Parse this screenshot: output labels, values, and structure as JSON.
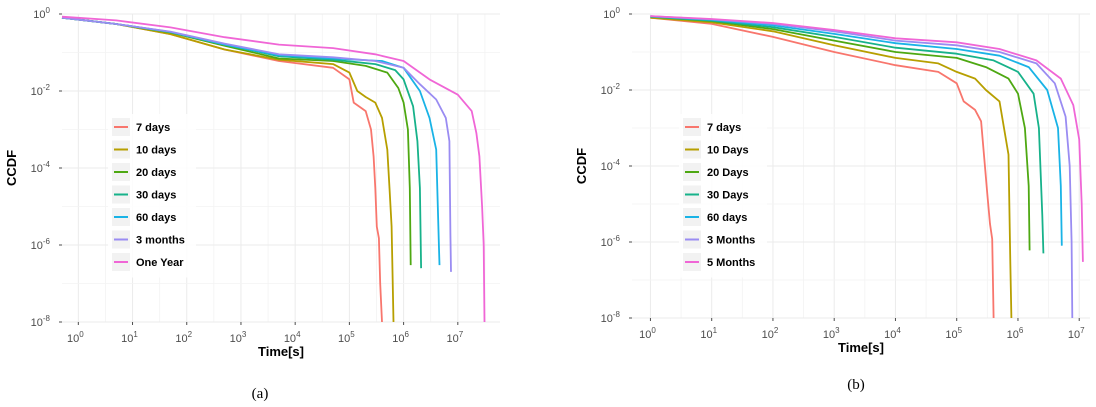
{
  "chart_data": [
    {
      "type": "line",
      "panel_label": "(a)",
      "xlabel": "Time[s]",
      "ylabel": "CCDF",
      "x_scale": "log10",
      "y_scale": "log10",
      "xlim": [
        0.5,
        60000000
      ],
      "ylim": [
        1e-08,
        1
      ],
      "x_ticks": [
        {
          "value": 1,
          "base": "10",
          "exp": "0"
        },
        {
          "value": 10,
          "base": "10",
          "exp": "1"
        },
        {
          "value": 100,
          "base": "10",
          "exp": "2"
        },
        {
          "value": 1000,
          "base": "10",
          "exp": "3"
        },
        {
          "value": 10000,
          "base": "10",
          "exp": "4"
        },
        {
          "value": 100000,
          "base": "10",
          "exp": "5"
        },
        {
          "value": 1000000,
          "base": "10",
          "exp": "6"
        },
        {
          "value": 10000000,
          "base": "10",
          "exp": "7"
        }
      ],
      "y_ticks": [
        {
          "value": 1,
          "base": "10",
          "exp": "0"
        },
        {
          "value": 0.01,
          "base": "10",
          "exp": "-2"
        },
        {
          "value": 0.0001,
          "base": "10",
          "exp": "-4"
        },
        {
          "value": 1e-06,
          "base": "10",
          "exp": "-6"
        },
        {
          "value": 1e-08,
          "base": "10",
          "exp": "-8"
        }
      ],
      "grid": true,
      "legend_position": "left",
      "series": [
        {
          "name": "7 days",
          "color": "#F8766D",
          "points": [
            [
              0.5,
              0.8
            ],
            [
              5,
              0.55
            ],
            [
              50,
              0.3
            ],
            [
              500,
              0.12
            ],
            [
              5000,
              0.06
            ],
            [
              50000,
              0.04
            ],
            [
              100000,
              0.02
            ],
            [
              120000,
              0.005
            ],
            [
              200000,
              0.003
            ],
            [
              250000,
              0.001
            ],
            [
              280000,
              0.0002
            ],
            [
              300000,
              3e-05
            ],
            [
              320000,
              3e-06
            ],
            [
              350000,
              1.5e-06
            ],
            [
              370000,
              1e-07
            ],
            [
              400000,
              1e-08
            ]
          ]
        },
        {
          "name": "10 days",
          "color": "#B79F00",
          "points": [
            [
              0.5,
              0.8
            ],
            [
              5,
              0.55
            ],
            [
              50,
              0.3
            ],
            [
              500,
              0.12
            ],
            [
              5000,
              0.065
            ],
            [
              50000,
              0.05
            ],
            [
              100000,
              0.03
            ],
            [
              140000,
              0.01
            ],
            [
              200000,
              0.007
            ],
            [
              300000,
              0.005
            ],
            [
              400000,
              0.002
            ],
            [
              500000,
              0.0003
            ],
            [
              550000,
              3e-05
            ],
            [
              600000,
              3e-06
            ],
            [
              650000,
              1e-08
            ]
          ]
        },
        {
          "name": "20 days",
          "color": "#4EA812",
          "points": [
            [
              0.5,
              0.8
            ],
            [
              5,
              0.55
            ],
            [
              50,
              0.33
            ],
            [
              500,
              0.15
            ],
            [
              5000,
              0.07
            ],
            [
              50000,
              0.06
            ],
            [
              200000,
              0.045
            ],
            [
              500000,
              0.03
            ],
            [
              800000,
              0.012
            ],
            [
              1000000,
              0.005
            ],
            [
              1200000,
              0.001
            ],
            [
              1300000,
              3e-05
            ],
            [
              1350000,
              3e-07
            ]
          ]
        },
        {
          "name": "30 days",
          "color": "#17B28A",
          "points": [
            [
              0.5,
              0.8
            ],
            [
              5,
              0.55
            ],
            [
              50,
              0.34
            ],
            [
              500,
              0.16
            ],
            [
              5000,
              0.08
            ],
            [
              50000,
              0.065
            ],
            [
              300000,
              0.05
            ],
            [
              700000,
              0.035
            ],
            [
              1000000,
              0.02
            ],
            [
              1500000,
              0.004
            ],
            [
              1800000,
              0.0005
            ],
            [
              2000000,
              3e-05
            ],
            [
              2100000,
              2.5e-07
            ]
          ]
        },
        {
          "name": "60 days",
          "color": "#19B3E6",
          "points": [
            [
              0.5,
              0.8
            ],
            [
              5,
              0.55
            ],
            [
              50,
              0.34
            ],
            [
              500,
              0.16
            ],
            [
              5000,
              0.085
            ],
            [
              50000,
              0.07
            ],
            [
              400000,
              0.06
            ],
            [
              1000000,
              0.04
            ],
            [
              2000000,
              0.01
            ],
            [
              3000000,
              0.002
            ],
            [
              4000000,
              0.0003
            ],
            [
              4500000,
              8e-07
            ],
            [
              4600000,
              3e-07
            ]
          ]
        },
        {
          "name": "3 months",
          "color": "#9A8CF2",
          "points": [
            [
              0.5,
              0.8
            ],
            [
              5,
              0.55
            ],
            [
              50,
              0.35
            ],
            [
              500,
              0.17
            ],
            [
              5000,
              0.09
            ],
            [
              50000,
              0.075
            ],
            [
              300000,
              0.06
            ],
            [
              1000000,
              0.04
            ],
            [
              2000000,
              0.015
            ],
            [
              4000000,
              0.006
            ],
            [
              6000000,
              0.002
            ],
            [
              7000000,
              0.0005
            ],
            [
              7300000,
              2e-06
            ],
            [
              7500000,
              2e-07
            ]
          ]
        },
        {
          "name": "One Year",
          "color": "#F066D6",
          "points": [
            [
              0.5,
              0.85
            ],
            [
              5,
              0.68
            ],
            [
              50,
              0.45
            ],
            [
              500,
              0.25
            ],
            [
              5000,
              0.16
            ],
            [
              50000,
              0.13
            ],
            [
              300000,
              0.09
            ],
            [
              1000000,
              0.06
            ],
            [
              3000000,
              0.02
            ],
            [
              10000000,
              0.008
            ],
            [
              18000000,
              0.003
            ],
            [
              22000000,
              0.0008
            ],
            [
              25000000,
              0.0002
            ],
            [
              28000000,
              1e-05
            ],
            [
              30000000,
              1e-06
            ],
            [
              31000000,
              1e-08
            ]
          ]
        }
      ]
    },
    {
      "type": "line",
      "panel_label": "(b)",
      "xlabel": "Time[s]",
      "ylabel": "CCDF",
      "x_scale": "log10",
      "y_scale": "log10",
      "xlim": [
        0.5,
        15000000
      ],
      "ylim": [
        1e-08,
        1
      ],
      "x_ticks": [
        {
          "value": 1,
          "base": "10",
          "exp": "0"
        },
        {
          "value": 10,
          "base": "10",
          "exp": "1"
        },
        {
          "value": 100,
          "base": "10",
          "exp": "2"
        },
        {
          "value": 1000,
          "base": "10",
          "exp": "3"
        },
        {
          "value": 10000,
          "base": "10",
          "exp": "4"
        },
        {
          "value": 100000,
          "base": "10",
          "exp": "5"
        },
        {
          "value": 1000000,
          "base": "10",
          "exp": "6"
        },
        {
          "value": 10000000,
          "base": "10",
          "exp": "7"
        }
      ],
      "y_ticks": [
        {
          "value": 1,
          "base": "10",
          "exp": "0"
        },
        {
          "value": 0.01,
          "base": "10",
          "exp": "-2"
        },
        {
          "value": 0.0001,
          "base": "10",
          "exp": "-4"
        },
        {
          "value": 1e-06,
          "base": "10",
          "exp": "-6"
        },
        {
          "value": 1e-08,
          "base": "10",
          "exp": "-8"
        }
      ],
      "grid": true,
      "legend_position": "left",
      "series": [
        {
          "name": "7 days",
          "color": "#F8766D",
          "points": [
            [
              1,
              0.8
            ],
            [
              10,
              0.55
            ],
            [
              100,
              0.25
            ],
            [
              1000,
              0.1
            ],
            [
              10000,
              0.045
            ],
            [
              50000,
              0.03
            ],
            [
              100000,
              0.015
            ],
            [
              130000,
              0.005
            ],
            [
              200000,
              0.003
            ],
            [
              250000,
              0.0015
            ],
            [
              300000,
              5e-05
            ],
            [
              320000,
              1.5e-05
            ],
            [
              350000,
              3e-06
            ],
            [
              380000,
              1.2e-06
            ],
            [
              400000,
              1e-08
            ]
          ]
        },
        {
          "name": "10 Days",
          "color": "#B79F00",
          "points": [
            [
              1,
              0.8
            ],
            [
              10,
              0.6
            ],
            [
              100,
              0.35
            ],
            [
              1000,
              0.15
            ],
            [
              10000,
              0.07
            ],
            [
              50000,
              0.05
            ],
            [
              100000,
              0.03
            ],
            [
              200000,
              0.02
            ],
            [
              300000,
              0.01
            ],
            [
              500000,
              0.005
            ],
            [
              700000,
              0.0002
            ],
            [
              750000,
              3e-07
            ],
            [
              780000,
              1e-08
            ]
          ]
        },
        {
          "name": "20 Days",
          "color": "#4EA812",
          "points": [
            [
              1,
              0.85
            ],
            [
              10,
              0.65
            ],
            [
              100,
              0.4
            ],
            [
              1000,
              0.2
            ],
            [
              10000,
              0.1
            ],
            [
              100000,
              0.07
            ],
            [
              300000,
              0.04
            ],
            [
              700000,
              0.02
            ],
            [
              1000000,
              0.008
            ],
            [
              1300000,
              0.001
            ],
            [
              1500000,
              3e-05
            ],
            [
              1550000,
              6e-07
            ]
          ]
        },
        {
          "name": "30 Days",
          "color": "#17B28A",
          "points": [
            [
              1,
              0.85
            ],
            [
              10,
              0.67
            ],
            [
              100,
              0.45
            ],
            [
              1000,
              0.25
            ],
            [
              10000,
              0.13
            ],
            [
              100000,
              0.09
            ],
            [
              400000,
              0.06
            ],
            [
              1000000,
              0.03
            ],
            [
              1800000,
              0.008
            ],
            [
              2200000,
              0.001
            ],
            [
              2500000,
              5e-06
            ],
            [
              2600000,
              5e-07
            ]
          ]
        },
        {
          "name": "60 days",
          "color": "#19B3E6",
          "points": [
            [
              1,
              0.87
            ],
            [
              10,
              0.7
            ],
            [
              100,
              0.5
            ],
            [
              1000,
              0.3
            ],
            [
              10000,
              0.17
            ],
            [
              100000,
              0.12
            ],
            [
              500000,
              0.08
            ],
            [
              1500000,
              0.04
            ],
            [
              3000000,
              0.01
            ],
            [
              4500000,
              0.001
            ],
            [
              5000000,
              3e-05
            ],
            [
              5200000,
              8e-07
            ]
          ]
        },
        {
          "name": "3 Months",
          "color": "#9A8CF2",
          "points": [
            [
              1,
              0.88
            ],
            [
              10,
              0.72
            ],
            [
              100,
              0.55
            ],
            [
              1000,
              0.35
            ],
            [
              10000,
              0.2
            ],
            [
              100000,
              0.15
            ],
            [
              500000,
              0.1
            ],
            [
              2000000,
              0.05
            ],
            [
              4000000,
              0.015
            ],
            [
              6000000,
              0.002
            ],
            [
              7000000,
              0.0001
            ],
            [
              7500000,
              1e-06
            ],
            [
              7700000,
              1e-08
            ]
          ]
        },
        {
          "name": "5 Months",
          "color": "#F066D6",
          "points": [
            [
              1,
              0.88
            ],
            [
              10,
              0.74
            ],
            [
              100,
              0.58
            ],
            [
              1000,
              0.38
            ],
            [
              10000,
              0.23
            ],
            [
              100000,
              0.18
            ],
            [
              500000,
              0.12
            ],
            [
              2000000,
              0.06
            ],
            [
              5000000,
              0.02
            ],
            [
              8000000,
              0.004
            ],
            [
              10000000,
              0.0005
            ],
            [
              11000000,
              1e-05
            ],
            [
              11500000,
              3e-07
            ]
          ]
        }
      ]
    }
  ]
}
